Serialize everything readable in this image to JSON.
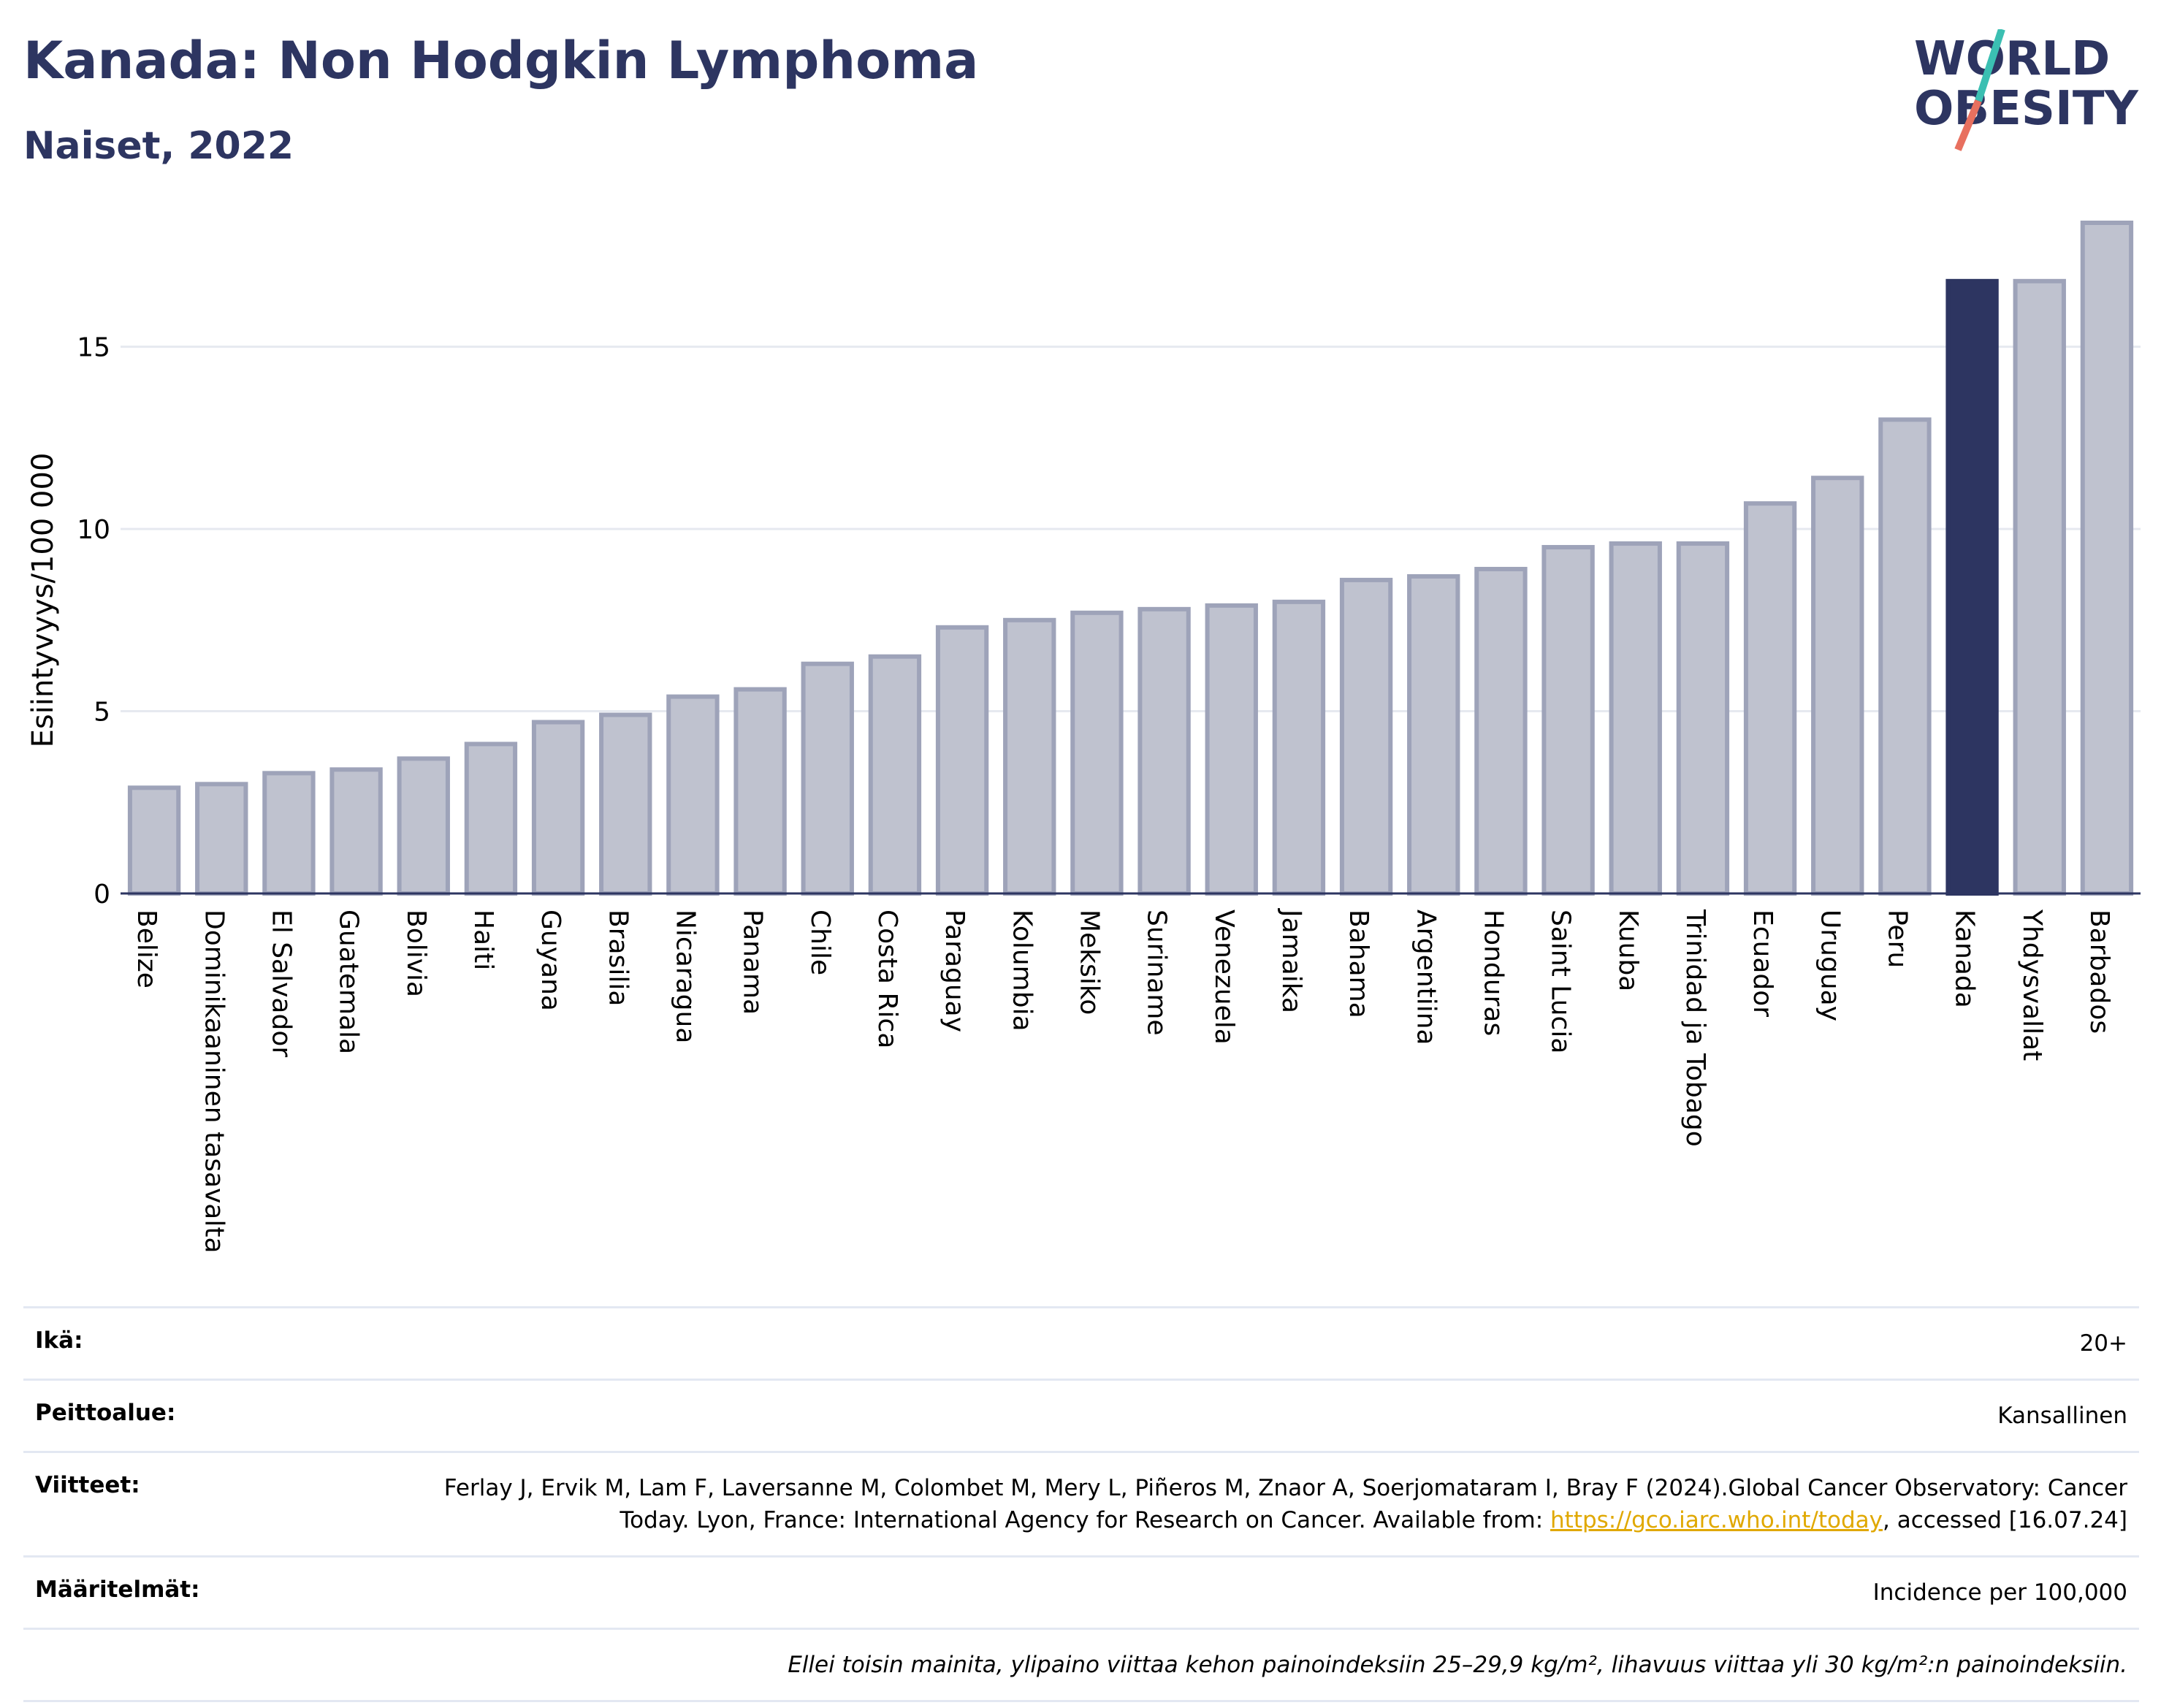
{
  "header": {
    "title": "Kanada: Non Hodgkin Lymphoma",
    "subtitle": "Naiset, 2022"
  },
  "logo": {
    "text_line1": "WORLD",
    "text_line2": "OBESITY",
    "colors": {
      "text": "#2d3561",
      "slash_top": "#3bbfb2",
      "slash_bottom": "#e8705f"
    }
  },
  "chart_data": {
    "type": "bar",
    "ylabel": "Esiintyvyys/100 000",
    "xlabel": "",
    "ylim": [
      0,
      18.5
    ],
    "yticks": [
      0,
      5,
      10,
      15
    ],
    "grid": true,
    "highlight_category": "Kanada",
    "colors": {
      "bar": "#bfc2cf",
      "bar_border": "#9ea3b9",
      "highlight": "#2d3561",
      "grid": "#e6e9f0"
    },
    "categories": [
      "Belize",
      "Dominikaaninen tasavalta",
      "El Salvador",
      "Guatemala",
      "Bolivia",
      "Haiti",
      "Guyana",
      "Brasilia",
      "Nicaragua",
      "Panama",
      "Chile",
      "Costa Rica",
      "Paraguay",
      "Kolumbia",
      "Meksiko",
      "Suriname",
      "Venezuela",
      "Jamaika",
      "Bahama",
      "Argentiina",
      "Honduras",
      "Saint Lucia",
      "Kuuba",
      "Trinidad ja Tobago",
      "Ecuador",
      "Uruguay",
      "Peru",
      "Kanada",
      "Yhdysvallat",
      "Barbados"
    ],
    "values": [
      2.9,
      3.0,
      3.3,
      3.4,
      3.7,
      4.1,
      4.7,
      4.9,
      5.4,
      5.6,
      6.3,
      6.5,
      7.3,
      7.5,
      7.7,
      7.8,
      7.9,
      8.0,
      8.6,
      8.7,
      8.9,
      9.5,
      9.6,
      9.6,
      10.7,
      11.4,
      13.0,
      16.8,
      16.8,
      18.4
    ]
  },
  "meta": {
    "age_label": "Ikä:",
    "age_value": "20+",
    "coverage_label": "Peittoalue:",
    "coverage_value": "Kansallinen",
    "references_label": "Viitteet:",
    "references_text_1": "Ferlay J, Ervik M, Lam F, Laversanne M, Colombet M, Mery L, Piñeros M, Znaor A, Soerjomataram I, Bray F (2024).Global Cancer Observatory: Cancer Today. Lyon, France: International Agency for Research on Cancer. Available from: ",
    "references_link": "https://gco.iarc.who.int/today",
    "references_text_2": ", accessed [16.07.24]",
    "definitions_label": "Määritelmät:",
    "definitions_value": "Incidence per 100,000",
    "note": "Ellei toisin mainita, ylipaino viittaa kehon painoindeksiin 25–29,9 kg/m², lihavuus viittaa yli 30 kg/m²:n painoindeksiin."
  }
}
